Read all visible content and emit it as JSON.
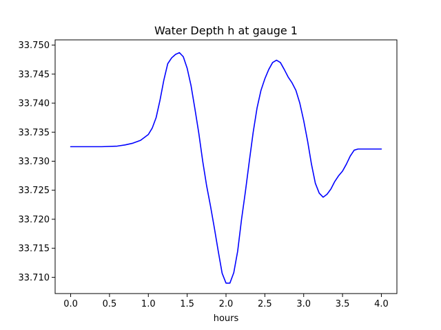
{
  "chart_data": {
    "type": "line",
    "title": "Water Depth h at gauge 1",
    "xlabel": "hours",
    "ylabel": "",
    "xlim": [
      -0.2,
      4.2
    ],
    "ylim": [
      33.7072,
      33.7509
    ],
    "xticks": [
      0.0,
      0.5,
      1.0,
      1.5,
      2.0,
      2.5,
      3.0,
      3.5,
      4.0
    ],
    "xtick_labels": [
      "0.0",
      "0.5",
      "1.0",
      "1.5",
      "2.0",
      "2.5",
      "3.0",
      "3.5",
      "4.0"
    ],
    "yticks": [
      33.71,
      33.715,
      33.72,
      33.725,
      33.73,
      33.735,
      33.74,
      33.745,
      33.75
    ],
    "ytick_labels": [
      "33.710",
      "33.715",
      "33.720",
      "33.725",
      "33.730",
      "33.735",
      "33.740",
      "33.745",
      "33.750"
    ],
    "grid": false,
    "legend": "none",
    "series": [
      {
        "color": "#0000ff",
        "x": [
          0.0,
          0.2,
          0.4,
          0.6,
          0.7,
          0.8,
          0.9,
          1.0,
          1.05,
          1.1,
          1.15,
          1.2,
          1.25,
          1.3,
          1.35,
          1.4,
          1.45,
          1.5,
          1.55,
          1.6,
          1.65,
          1.7,
          1.75,
          1.8,
          1.85,
          1.9,
          1.95,
          2.0,
          2.05,
          2.1,
          2.15,
          2.2,
          2.25,
          2.3,
          2.35,
          2.4,
          2.45,
          2.5,
          2.55,
          2.6,
          2.65,
          2.7,
          2.75,
          2.8,
          2.85,
          2.9,
          2.95,
          3.0,
          3.05,
          3.1,
          3.15,
          3.2,
          3.25,
          3.3,
          3.35,
          3.4,
          3.45,
          3.5,
          3.55,
          3.6,
          3.65,
          3.7,
          3.75,
          3.8,
          3.85,
          3.9,
          3.95,
          4.0
        ],
        "y": [
          33.7325,
          33.7325,
          33.7325,
          33.7326,
          33.7328,
          33.7331,
          33.7336,
          33.7346,
          33.7357,
          33.7375,
          33.7405,
          33.744,
          33.7468,
          33.7478,
          33.7484,
          33.7487,
          33.748,
          33.746,
          33.743,
          33.739,
          33.7348,
          33.73,
          33.7258,
          33.7223,
          33.7185,
          33.7145,
          33.7107,
          33.709,
          33.709,
          33.7108,
          33.7145,
          33.72,
          33.7248,
          33.73,
          33.735,
          33.7392,
          33.7422,
          33.7442,
          33.7458,
          33.747,
          33.7474,
          33.747,
          33.7458,
          33.7445,
          33.7435,
          33.7422,
          33.74,
          33.737,
          33.7335,
          33.7295,
          33.7262,
          33.7245,
          33.7238,
          33.7243,
          33.7252,
          33.7265,
          33.7275,
          33.7283,
          33.7295,
          33.7309,
          33.7319,
          33.7321,
          33.7321,
          33.7321,
          33.7321,
          33.7321,
          33.7321,
          33.7321
        ]
      }
    ]
  }
}
